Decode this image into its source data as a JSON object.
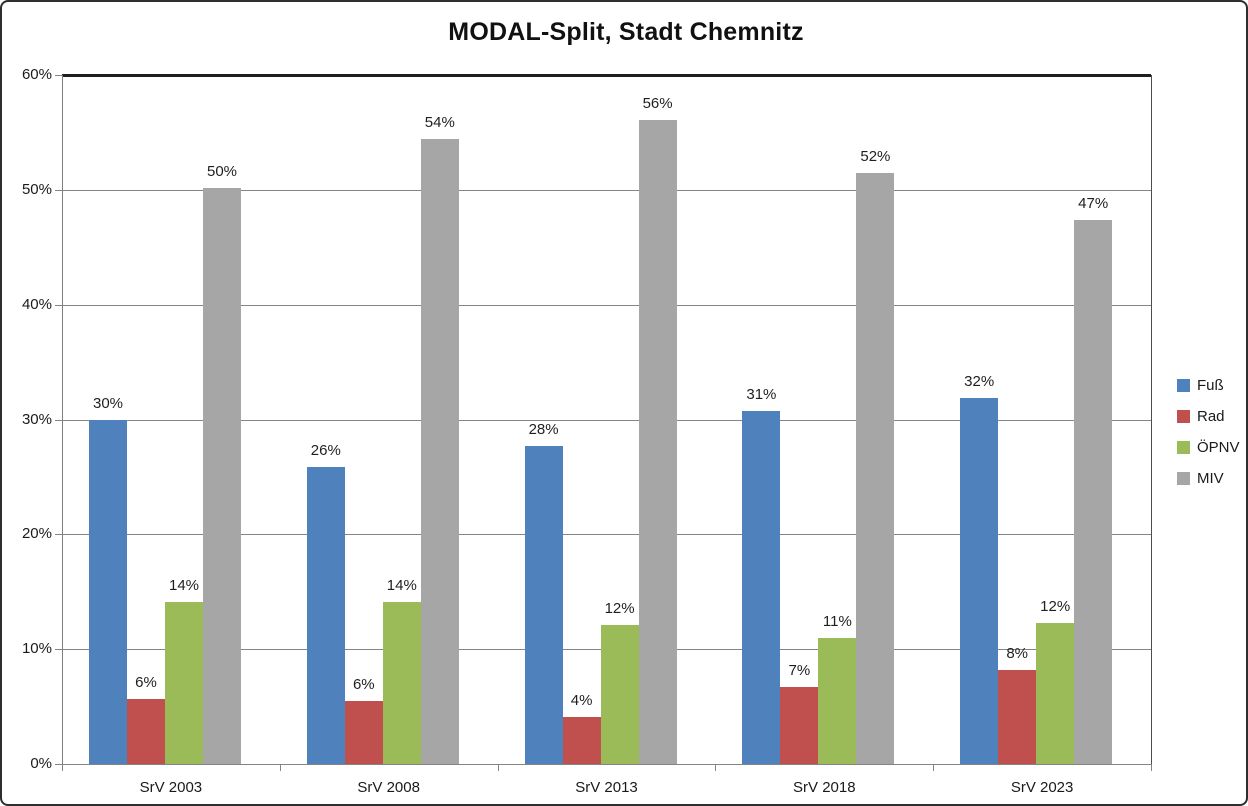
{
  "title": "MODAL-Split, Stadt Chemnitz",
  "chart_data": {
    "type": "bar",
    "title": "MODAL-Split, Stadt Chemnitz",
    "categories": [
      "SrV 2003",
      "SrV 2008",
      "SrV 2013",
      "SrV 2018",
      "SrV 2023"
    ],
    "series": [
      {
        "name": "Fuß",
        "id": "fuss",
        "color": "#4F81BD",
        "values": [
          30.0,
          25.9,
          27.7,
          30.7,
          31.9
        ],
        "labels": [
          "30%",
          "26%",
          "28%",
          "31%",
          "32%"
        ]
      },
      {
        "name": "Rad",
        "id": "rad",
        "color": "#C0504D",
        "values": [
          5.7,
          5.5,
          4.1,
          6.7,
          8.2
        ],
        "labels": [
          "6%",
          "6%",
          "4%",
          "7%",
          "8%"
        ]
      },
      {
        "name": "ÖPNV",
        "id": "oepnv",
        "color": "#9BBB59",
        "values": [
          14.1,
          14.1,
          12.1,
          11.0,
          12.3
        ],
        "labels": [
          "14%",
          "14%",
          "12%",
          "11%",
          "12%"
        ]
      },
      {
        "name": "MIV",
        "id": "miv",
        "color": "#A6A6A6",
        "values": [
          50.2,
          54.4,
          56.1,
          51.5,
          47.4
        ],
        "labels": [
          "50%",
          "54%",
          "56%",
          "52%",
          "47%"
        ]
      }
    ],
    "xlabel": "",
    "ylabel": "",
    "ylim": [
      0,
      60
    ],
    "ytick_step": 10,
    "ytick_labels": [
      "0%",
      "10%",
      "20%",
      "30%",
      "40%",
      "50%",
      "60%"
    ],
    "grid": true,
    "legend_position": "right",
    "gridline_color": "#848484"
  }
}
